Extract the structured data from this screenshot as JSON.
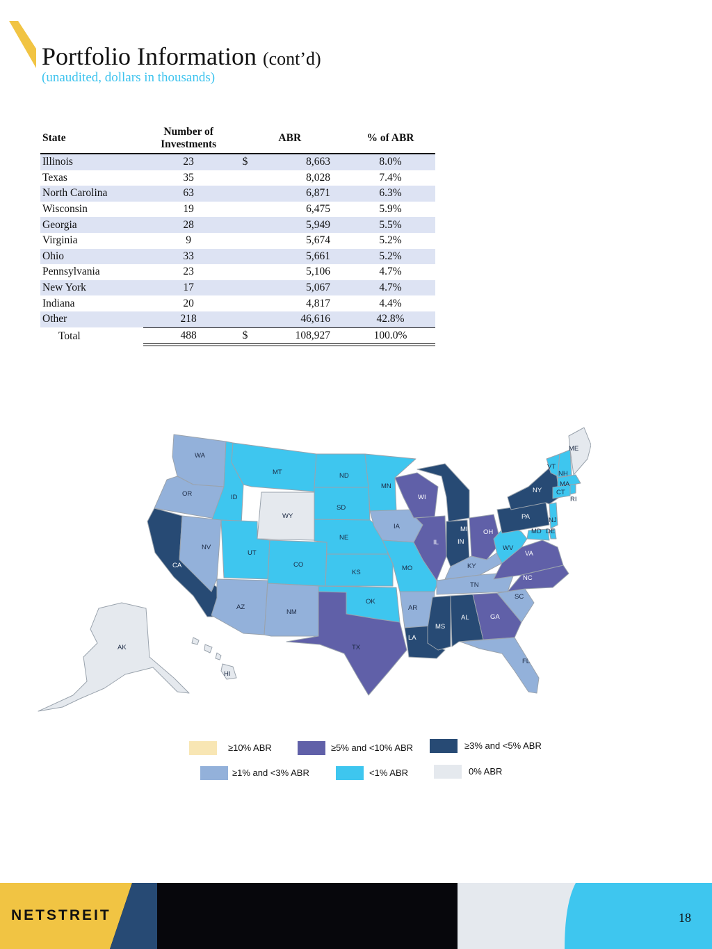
{
  "header": {
    "title": "Portfolio Information",
    "title_suffix": "(cont’d)",
    "subtitle": "(unaudited, dollars in thousands)"
  },
  "table": {
    "columns": {
      "state": "State",
      "investments": "Number of Investments",
      "abr": "ABR",
      "pct": "% of ABR"
    },
    "currency_symbol": "$",
    "rows": [
      {
        "state": "Illinois",
        "investments": "23",
        "abr": "8,663",
        "pct": "8.0%"
      },
      {
        "state": "Texas",
        "investments": "35",
        "abr": "8,028",
        "pct": "7.4%"
      },
      {
        "state": "North Carolina",
        "investments": "63",
        "abr": "6,871",
        "pct": "6.3%"
      },
      {
        "state": "Wisconsin",
        "investments": "19",
        "abr": "6,475",
        "pct": "5.9%"
      },
      {
        "state": "Georgia",
        "investments": "28",
        "abr": "5,949",
        "pct": "5.5%"
      },
      {
        "state": "Virginia",
        "investments": "9",
        "abr": "5,674",
        "pct": "5.2%"
      },
      {
        "state": "Ohio",
        "investments": "33",
        "abr": "5,661",
        "pct": "5.2%"
      },
      {
        "state": "Pennsylvania",
        "investments": "23",
        "abr": "5,106",
        "pct": "4.7%"
      },
      {
        "state": "New York",
        "investments": "17",
        "abr": "5,067",
        "pct": "4.7%"
      },
      {
        "state": "Indiana",
        "investments": "20",
        "abr": "4,817",
        "pct": "4.4%"
      },
      {
        "state": "Other",
        "investments": "218",
        "abr": "46,616",
        "pct": "42.8%"
      }
    ],
    "total": {
      "label": "Total",
      "investments": "488",
      "abr": "108,927",
      "pct": "100.0%"
    }
  },
  "map": {
    "state_labels": [
      "WA",
      "OR",
      "CA",
      "ID",
      "NV",
      "MT",
      "WY",
      "UT",
      "AZ",
      "CO",
      "NM",
      "ND",
      "SD",
      "NE",
      "KS",
      "OK",
      "TX",
      "MN",
      "IA",
      "MO",
      "AR",
      "LA",
      "WI",
      "IL",
      "MI",
      "IN",
      "OH",
      "KY",
      "TN",
      "MS",
      "AL",
      "GA",
      "FL",
      "SC",
      "NC",
      "VA",
      "WV",
      "PA",
      "NY",
      "VT",
      "NH",
      "ME",
      "MA",
      "CT",
      "RI",
      "NJ",
      "MD",
      "DE",
      "AK",
      "HI"
    ]
  },
  "legend": {
    "items": [
      {
        "label": "≥10% ABR",
        "color": "#f8e6b4"
      },
      {
        "label": "≥5% and <10% ABR",
        "color": "#6060a8"
      },
      {
        "label": "≥3% and <5% ABR",
        "color": "#274a74"
      },
      {
        "label": "≥1% and <3% ABR",
        "color": "#93b1da"
      },
      {
        "label": "<1% ABR",
        "color": "#3ec6ef"
      },
      {
        "label": "0% ABR",
        "color": "#e5e9ee"
      }
    ]
  },
  "colors": {
    "accent_yellow": "#f1c443",
    "navy": "#274a74",
    "sky": "#3ec6ef",
    "pale": "#e5e9ee",
    "row_shade": "#dde3f3"
  },
  "footer": {
    "logo": "NETSTREIT",
    "page_number": "18"
  }
}
